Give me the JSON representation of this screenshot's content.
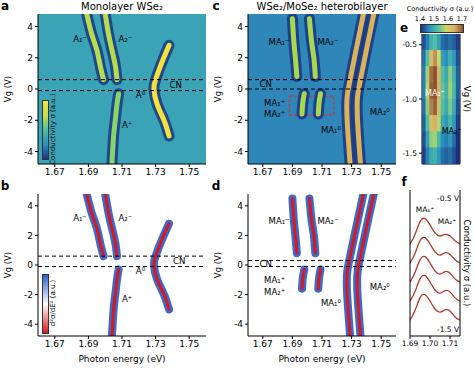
{
  "chart_data": [
    {
      "panel_label": "a",
      "type": "line",
      "title": "Monolayer WSe₂",
      "y_label": "Vg (V)",
      "xlim": [
        1.66,
        1.76
      ],
      "xticks": [
        1.67,
        1.69,
        1.71,
        1.73,
        1.75
      ],
      "ylim": [
        -4.8,
        4.8
      ],
      "yticks": [
        -4,
        -2,
        0,
        2,
        4
      ],
      "color": "#3aa3b6",
      "reference_lines": [
        0.6,
        -0.1
      ],
      "colorbar": {
        "label": "Conductivity σ (a.u.)",
        "colors": [
          "#1f2f86",
          "#2e8fc4",
          "#4fbf9a",
          "#c9dc4c",
          "#f6e43a"
        ]
      },
      "series": [
        {
          "color": "#b5dc4c",
          "line_style": "glow",
          "x": [
            1.699,
            1.697,
            1.695,
            1.692,
            1.689
          ],
          "y": [
            0.6,
            1.5,
            2.5,
            3.5,
            4.8
          ]
        },
        {
          "color": "#b5dc4c",
          "line_style": "glow",
          "x": [
            1.707,
            1.706,
            1.704,
            1.702,
            1.7
          ],
          "y": [
            0.6,
            1.5,
            2.5,
            3.5,
            4.8
          ]
        },
        {
          "color": "#f4e23c",
          "line_style": "glow",
          "x": [
            1.738,
            1.733,
            1.73,
            1.729,
            1.731,
            1.735,
            1.738
          ],
          "y": [
            2.8,
            1.5,
            0.6,
            0,
            -1,
            -2,
            -3
          ]
        },
        {
          "color": "#86d46a",
          "line_style": "glow",
          "x": [
            1.708,
            1.707,
            1.706,
            1.705,
            1.704
          ],
          "y": [
            -0.3,
            -1,
            -2,
            -3,
            -4.8
          ]
        }
      ],
      "annotations": [
        {
          "text": "A₁⁻",
          "x": 1.685,
          "y": 3.2
        },
        {
          "text": "A₂⁻",
          "x": 1.712,
          "y": 3.2
        },
        {
          "text": "A⁰",
          "x": 1.721,
          "y": -0.4
        },
        {
          "text": "A⁺",
          "x": 1.713,
          "y": -2.3
        },
        {
          "text": "CN",
          "x": 1.742,
          "y": 0.25
        }
      ]
    },
    {
      "panel_label": "b",
      "type": "line",
      "x_label": "Photon energy (eV)",
      "y_label": "Vg (V)",
      "xlim": [
        1.66,
        1.76
      ],
      "xticks": [
        1.67,
        1.69,
        1.71,
        1.73,
        1.75
      ],
      "ylim": [
        -4.8,
        4.8
      ],
      "yticks": [
        -4,
        -2,
        0,
        2,
        4
      ],
      "color": "#ffffff",
      "reference_lines": [
        0.6,
        -0.1
      ],
      "colorbar": {
        "label": "d²σ/dE² (a.u.)",
        "colors": [
          "#d7191c",
          "#ffffff",
          "#2c5fc8"
        ]
      },
      "series": [
        {
          "color": "#d7191c",
          "line_style": "fringe",
          "x": [
            1.699,
            1.697,
            1.695,
            1.692,
            1.689
          ],
          "y": [
            0.6,
            1.5,
            2.5,
            3.5,
            4.8
          ]
        },
        {
          "color": "#d7191c",
          "line_style": "fringe",
          "x": [
            1.707,
            1.706,
            1.704,
            1.702,
            1.7
          ],
          "y": [
            0.6,
            1.5,
            2.5,
            3.5,
            4.8
          ]
        },
        {
          "color": "#d7191c",
          "line_style": "fringe",
          "x": [
            1.738,
            1.733,
            1.73,
            1.729,
            1.731,
            1.735,
            1.738
          ],
          "y": [
            2.8,
            1.5,
            0.6,
            0,
            -1,
            -2,
            -3
          ]
        },
        {
          "color": "#d7191c",
          "line_style": "fringe",
          "x": [
            1.708,
            1.707,
            1.706,
            1.705,
            1.704
          ],
          "y": [
            -0.3,
            -1,
            -2,
            -3,
            -4.8
          ]
        }
      ],
      "annotations": [
        {
          "text": "A₁⁻",
          "x": 1.685,
          "y": 3.2
        },
        {
          "text": "A₂⁻",
          "x": 1.712,
          "y": 3.2
        },
        {
          "text": "A⁰",
          "x": 1.721,
          "y": -0.4
        },
        {
          "text": "A⁺",
          "x": 1.713,
          "y": -2.3
        },
        {
          "text": "CN",
          "x": 1.744,
          "y": 0.25
        }
      ]
    },
    {
      "panel_label": "c",
      "type": "line",
      "title": "WSe₂/MoSe₂ heterobilayer",
      "y_label": "Vg (V)",
      "xlim": [
        1.66,
        1.76
      ],
      "xticks": [
        1.67,
        1.69,
        1.71,
        1.73,
        1.75
      ],
      "ylim": [
        -4.8,
        4.8
      ],
      "yticks": [
        -4,
        -2,
        0,
        2,
        4
      ],
      "color": "#2f86b8",
      "reference_lines": [
        0.6,
        0
      ],
      "box": {
        "x": [
          1.688,
          1.718
        ],
        "y": [
          -1.65,
          -0.45
        ],
        "color": "#e03030"
      },
      "series": [
        {
          "color": "#a6d94e",
          "line_style": "glow",
          "x": [
            1.693,
            1.692,
            1.691,
            1.69
          ],
          "y": [
            0.8,
            2,
            3,
            4.5
          ]
        },
        {
          "color": "#a6d94e",
          "line_style": "glow",
          "x": [
            1.7055,
            1.7045,
            1.703,
            1.7015
          ],
          "y": [
            0.8,
            2,
            3,
            4.5
          ]
        },
        {
          "color": "#a6d94e",
          "line_style": "glow",
          "x": [
            1.698,
            1.697,
            1.6965
          ],
          "y": [
            -0.3,
            -0.9,
            -1.6
          ]
        },
        {
          "color": "#a6d94e",
          "line_style": "glow",
          "x": [
            1.709,
            1.708,
            1.7075
          ],
          "y": [
            -0.3,
            -0.9,
            -1.6
          ]
        },
        {
          "color": "#d9b25a",
          "line_style": "glow",
          "x": [
            1.738,
            1.733,
            1.729,
            1.727,
            1.727,
            1.729
          ],
          "y": [
            4.8,
            2.5,
            0.6,
            -0.5,
            -2,
            -4.8
          ]
        },
        {
          "color": "#d9b25a",
          "line_style": "glow",
          "x": [
            1.745,
            1.74,
            1.736,
            1.734,
            1.734,
            1.736
          ],
          "y": [
            4.8,
            2.5,
            0.6,
            -0.5,
            -2,
            -4.8
          ]
        }
      ],
      "annotations": [
        {
          "text": "MA₁⁻",
          "x": 1.681,
          "y": 3.0
        },
        {
          "text": "MA₂⁻",
          "x": 1.714,
          "y": 3.0
        },
        {
          "text": "MA₁⁺",
          "x": 1.678,
          "y": -0.9
        },
        {
          "text": "MA₂⁺",
          "x": 1.678,
          "y": -1.6
        },
        {
          "text": "MA₁⁰",
          "x": 1.716,
          "y": -2.6
        },
        {
          "text": "MA₂⁰",
          "x": 1.749,
          "y": -1.5
        },
        {
          "text": "CN",
          "x": 1.672,
          "y": 0.3
        }
      ]
    },
    {
      "panel_label": "d",
      "type": "line",
      "x_label": "Photon energy (eV)",
      "y_label": "Vg (V)",
      "xlim": [
        1.66,
        1.76
      ],
      "xticks": [
        1.67,
        1.69,
        1.71,
        1.73,
        1.75
      ],
      "ylim": [
        -4.8,
        4.8
      ],
      "yticks": [
        -4,
        -2,
        0,
        2,
        4
      ],
      "color": "#ffffff",
      "reference_lines": [
        0.3,
        -0.1
      ],
      "series": [
        {
          "color": "#d7191c",
          "line_style": "fringe",
          "x": [
            1.693,
            1.692,
            1.691,
            1.69
          ],
          "y": [
            0.8,
            2,
            3,
            4.5
          ]
        },
        {
          "color": "#d7191c",
          "line_style": "fringe",
          "x": [
            1.7055,
            1.7045,
            1.703,
            1.7015
          ],
          "y": [
            0.8,
            2,
            3,
            4.5
          ]
        },
        {
          "color": "#d7191c",
          "line_style": "fringe",
          "x": [
            1.698,
            1.697,
            1.6965
          ],
          "y": [
            -0.3,
            -0.9,
            -1.6
          ]
        },
        {
          "color": "#d7191c",
          "line_style": "fringe",
          "x": [
            1.709,
            1.708,
            1.7075
          ],
          "y": [
            -0.3,
            -0.9,
            -1.6
          ]
        },
        {
          "color": "#d7191c",
          "line_style": "fringe",
          "x": [
            1.738,
            1.733,
            1.729,
            1.727,
            1.727,
            1.729
          ],
          "y": [
            4.8,
            2.5,
            0.6,
            -0.5,
            -2,
            -4.8
          ]
        },
        {
          "color": "#d7191c",
          "line_style": "fringe",
          "x": [
            1.745,
            1.74,
            1.736,
            1.734,
            1.734,
            1.736
          ],
          "y": [
            4.8,
            2.5,
            0.6,
            -0.5,
            -2,
            -4.8
          ]
        }
      ],
      "annotations": [
        {
          "text": "MA₁⁻",
          "x": 1.681,
          "y": 3.0
        },
        {
          "text": "MA₂⁻",
          "x": 1.714,
          "y": 3.0
        },
        {
          "text": "MA₁⁺",
          "x": 1.678,
          "y": -1.0
        },
        {
          "text": "MA₂⁺",
          "x": 1.678,
          "y": -1.8
        },
        {
          "text": "MA₁⁰",
          "x": 1.716,
          "y": -2.6
        },
        {
          "text": "MA₂⁰",
          "x": 1.749,
          "y": -1.5
        },
        {
          "text": "CN",
          "x": 1.672,
          "y": 0.1
        }
      ]
    },
    {
      "panel_label": "e",
      "type": "heatmap",
      "y_label": "Vg (V)",
      "tick_labels": "y",
      "xlim": [
        1.69,
        1.715
      ],
      "ylim": [
        -1.6,
        -0.4
      ],
      "yticks": [
        -0.5,
        {
          "value": -1,
          "label": "-1.0"
        },
        -1.5
      ],
      "x": [
        1.69125,
        1.69375,
        1.69625,
        1.69875,
        1.70125,
        1.70375,
        1.70625,
        1.70875,
        1.71125,
        1.71375
      ],
      "y": [
        -0.475,
        -0.625,
        -0.775,
        -0.925,
        -1.075,
        -1.225,
        -1.375,
        -1.525
      ],
      "cells": [
        [
          1.42,
          1.45,
          1.5,
          1.52,
          1.48,
          1.44,
          1.43,
          1.44,
          1.43,
          1.41
        ],
        [
          1.44,
          1.52,
          1.62,
          1.66,
          1.58,
          1.48,
          1.46,
          1.5,
          1.47,
          1.42
        ],
        [
          1.45,
          1.56,
          1.68,
          1.7,
          1.63,
          1.52,
          1.49,
          1.55,
          1.5,
          1.43
        ],
        [
          1.45,
          1.57,
          1.69,
          1.7,
          1.64,
          1.53,
          1.5,
          1.56,
          1.51,
          1.43
        ],
        [
          1.44,
          1.55,
          1.67,
          1.69,
          1.62,
          1.52,
          1.49,
          1.54,
          1.49,
          1.42
        ],
        [
          1.43,
          1.52,
          1.62,
          1.64,
          1.57,
          1.49,
          1.47,
          1.51,
          1.47,
          1.41
        ],
        [
          1.42,
          1.48,
          1.55,
          1.56,
          1.51,
          1.46,
          1.45,
          1.47,
          1.44,
          1.4
        ],
        [
          1.41,
          1.45,
          1.49,
          1.5,
          1.47,
          1.44,
          1.43,
          1.44,
          1.42,
          1.4
        ]
      ],
      "colorbar": {
        "label": "Conductivity σ (a.u.)",
        "range": [
          1.4,
          1.7
        ],
        "ticks": [
          1.4,
          1.5,
          1.6,
          1.7
        ],
        "colors": [
          "#1c2f7a",
          "#2a8fc0",
          "#4fc0a0",
          "#cfd85e",
          "#d9ad6a",
          "#8a5230"
        ]
      },
      "annotations": [
        {
          "text": "MA₁⁺",
          "x": 1.6985,
          "y": -0.95,
          "color": "#ffffff"
        },
        {
          "text": "MA₂⁺",
          "x": 1.7095,
          "y": -1.3
        }
      ]
    },
    {
      "panel_label": "f",
      "type": "line",
      "y_label": "Conductivity σ (a.u.)",
      "tick_labels": "x",
      "xlim": [
        1.69,
        1.715
      ],
      "xticks": [
        1.69,
        {
          "value": 1.7,
          "label": "1.70"
        },
        1.71
      ],
      "ylim": [
        0,
        4.6
      ],
      "x": [
        1.69,
        1.6925,
        1.695,
        1.6975,
        1.7,
        1.7025,
        1.705,
        1.7075,
        1.71,
        1.7125,
        1.715
      ],
      "series": [
        {
          "color": "#b03a2e",
          "values": [
            2.9,
            3.2,
            3.6,
            3.7,
            3.5,
            3.25,
            3.15,
            3.2,
            3.15,
            3.0,
            2.9
          ]
        },
        {
          "color": "#b03a2e",
          "values": [
            2.3,
            2.6,
            3.0,
            3.1,
            2.9,
            2.65,
            2.55,
            2.62,
            2.57,
            2.4,
            2.3
          ]
        },
        {
          "color": "#b03a2e",
          "values": [
            1.7,
            2.0,
            2.4,
            2.5,
            2.3,
            2.05,
            1.95,
            2.03,
            1.98,
            1.8,
            1.7
          ]
        },
        {
          "color": "#b03a2e",
          "values": [
            1.1,
            1.4,
            1.8,
            1.9,
            1.7,
            1.45,
            1.35,
            1.43,
            1.39,
            1.2,
            1.1
          ]
        },
        {
          "color": "#b03a2e",
          "values": [
            0.5,
            0.8,
            1.2,
            1.3,
            1.1,
            0.85,
            0.75,
            0.82,
            0.79,
            0.6,
            0.5
          ]
        }
      ],
      "annotations": [
        {
          "text": "MA₁⁺",
          "x": 1.6975,
          "y": 4.0
        },
        {
          "text": "MA₂⁺",
          "x": 1.7085,
          "y": 3.6
        },
        {
          "text": "-0.5 V",
          "x": 1.709,
          "y": 4.35
        },
        {
          "text": "-1.5 V",
          "x": 1.709,
          "y": 0.2
        }
      ]
    }
  ]
}
